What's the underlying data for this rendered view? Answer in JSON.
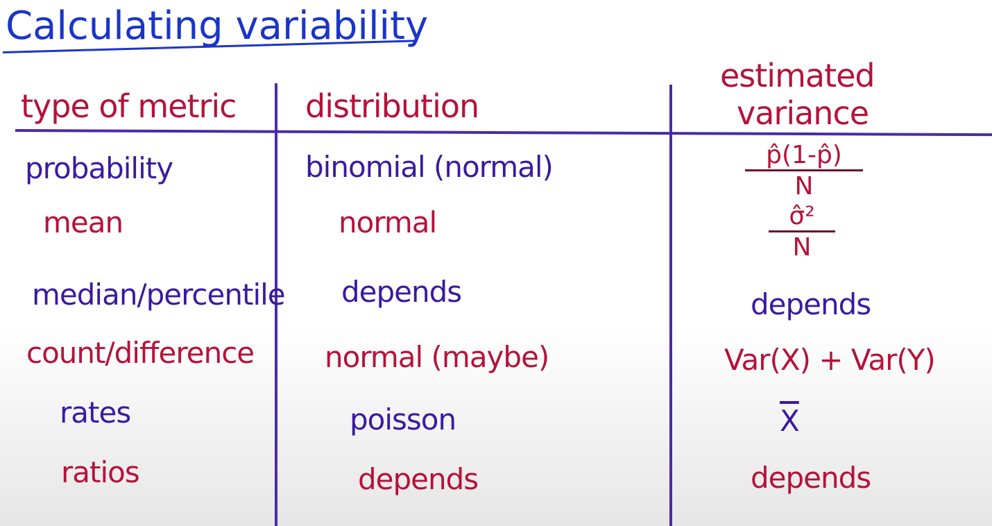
{
  "title": "Calculating variability",
  "headers": {
    "metric": "type of metric",
    "distribution": "distribution",
    "variance_line1": "estimated",
    "variance_line2": "variance"
  },
  "rows": [
    {
      "metric": "probability",
      "distribution": "binomial (normal)",
      "variance_num": "p̂(1-p̂)",
      "variance_den": "N"
    },
    {
      "metric": "mean",
      "distribution": "normal",
      "variance_num": "σ̂²",
      "variance_den": "N"
    },
    {
      "metric": "median/percentile",
      "distribution": "depends",
      "variance": "depends"
    },
    {
      "metric": "count/difference",
      "distribution": "normal (maybe)",
      "variance": "Var(X) + Var(Y)"
    },
    {
      "metric": "rates",
      "distribution": "poisson",
      "variance": "X"
    },
    {
      "metric": "ratios",
      "distribution": "depends",
      "variance": "depends"
    }
  ],
  "colors": {
    "title": "#1a35c8",
    "red_ink": "#b5123a",
    "purple_ink": "#3a1aa0",
    "rules": "#4b2aa8"
  }
}
